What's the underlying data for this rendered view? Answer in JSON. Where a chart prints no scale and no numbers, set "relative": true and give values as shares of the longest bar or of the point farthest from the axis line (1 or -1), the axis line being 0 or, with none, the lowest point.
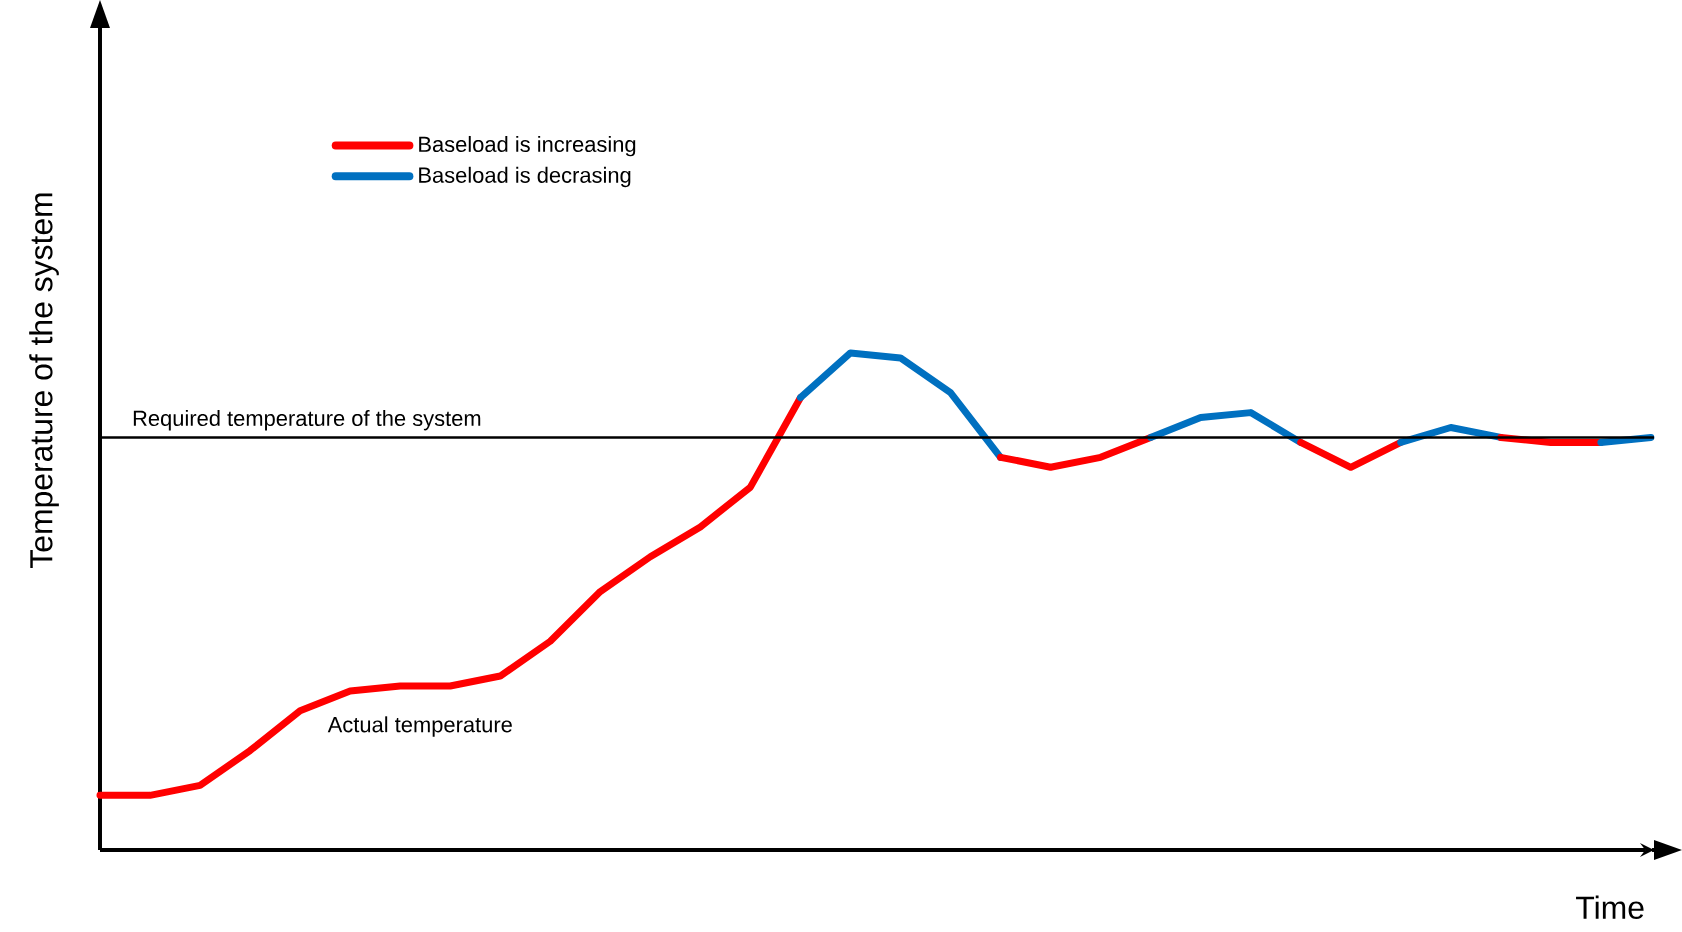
{
  "chart_data": {
    "type": "line",
    "relative": true,
    "xlabel": "Time",
    "ylabel": "Temperature of the system",
    "categories": [
      null,
      null,
      null,
      null,
      null,
      null,
      null,
      null,
      null,
      null,
      null,
      null,
      null,
      null,
      null,
      null,
      null,
      null,
      null,
      null,
      null,
      null,
      null,
      null,
      null,
      null,
      null,
      null,
      null,
      null,
      null,
      null
    ],
    "series": [
      {
        "name": "Baseload is increasing",
        "color": "#ff0000",
        "values": [
          0.11,
          0.11,
          0.13,
          0.2,
          0.28,
          0.32,
          0.33,
          0.33,
          0.35,
          0.42,
          0.52,
          0.59,
          0.65,
          0.73,
          0.91,
          null,
          null,
          null,
          null,
          null,
          null,
          null,
          null,
          null,
          null,
          null,
          null,
          null,
          null,
          null,
          null,
          null
        ]
      },
      {
        "name": "Baseload is decrasing",
        "color": "#0070c0",
        "values": [
          null,
          null,
          null,
          null,
          null,
          null,
          null,
          null,
          null,
          null,
          null,
          null,
          null,
          null,
          0.91,
          1.0,
          0.99,
          0.92,
          0.79,
          null,
          null,
          null,
          null,
          null,
          null,
          null,
          null,
          null,
          null,
          null,
          null,
          null
        ]
      },
      {
        "color": "#ff0000",
        "values": [
          null,
          null,
          null,
          null,
          null,
          null,
          null,
          null,
          null,
          null,
          null,
          null,
          null,
          null,
          null,
          null,
          null,
          null,
          0.79,
          0.77,
          0.79,
          0.83,
          null,
          null,
          null,
          null,
          null,
          null,
          null,
          null,
          null,
          null
        ]
      },
      {
        "color": "#0070c0",
        "values": [
          null,
          null,
          null,
          null,
          null,
          null,
          null,
          null,
          null,
          null,
          null,
          null,
          null,
          null,
          null,
          null,
          null,
          null,
          null,
          null,
          null,
          0.83,
          0.87,
          0.88,
          0.82,
          null,
          null,
          null,
          null,
          null,
          null,
          null
        ]
      },
      {
        "color": "#ff0000",
        "values": [
          null,
          null,
          null,
          null,
          null,
          null,
          null,
          null,
          null,
          null,
          null,
          null,
          null,
          null,
          null,
          null,
          null,
          null,
          null,
          null,
          null,
          null,
          null,
          null,
          0.82,
          0.77,
          0.82,
          null,
          null,
          null,
          null,
          null
        ]
      },
      {
        "color": "#0070c0",
        "values": [
          null,
          null,
          null,
          null,
          null,
          null,
          null,
          null,
          null,
          null,
          null,
          null,
          null,
          null,
          null,
          null,
          null,
          null,
          null,
          null,
          null,
          null,
          null,
          null,
          null,
          null,
          0.82,
          0.85,
          0.83,
          null,
          null,
          null
        ]
      },
      {
        "color": "#ff0000",
        "values": [
          null,
          null,
          null,
          null,
          null,
          null,
          null,
          null,
          null,
          null,
          null,
          null,
          null,
          null,
          null,
          null,
          null,
          null,
          null,
          null,
          null,
          null,
          null,
          null,
          null,
          null,
          null,
          null,
          0.83,
          0.82,
          0.82,
          null
        ]
      },
      {
        "color": "#0070c0",
        "values": [
          null,
          null,
          null,
          null,
          null,
          null,
          null,
          null,
          null,
          null,
          null,
          null,
          null,
          null,
          null,
          null,
          null,
          null,
          null,
          null,
          null,
          null,
          null,
          null,
          null,
          null,
          null,
          null,
          null,
          null,
          0.82,
          0.83
        ]
      }
    ],
    "ref_lines": [
      {
        "axis": "y",
        "value": 0.83,
        "label": "Required temperature of the system",
        "color": "#000000"
      }
    ],
    "annotations": [
      "Actual temperature"
    ],
    "legend": "top left"
  }
}
